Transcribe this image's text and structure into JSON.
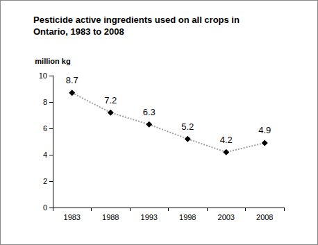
{
  "chart_data": {
    "type": "line",
    "title": "Pesticide active ingredients used on all crops in\nOntario, 1983 to 2008",
    "ylabel": "million kg",
    "categories": [
      "1983",
      "1988",
      "1993",
      "1998",
      "2003",
      "2008"
    ],
    "values": [
      8.7,
      7.2,
      6.3,
      5.2,
      4.2,
      4.9
    ],
    "color": "#000000",
    "marker": "diamond",
    "line_style": "dotted",
    "data_labels": true,
    "grid": false,
    "ylim": [
      0,
      10
    ],
    "yticks": [
      0,
      2,
      4,
      6,
      8,
      10
    ]
  }
}
